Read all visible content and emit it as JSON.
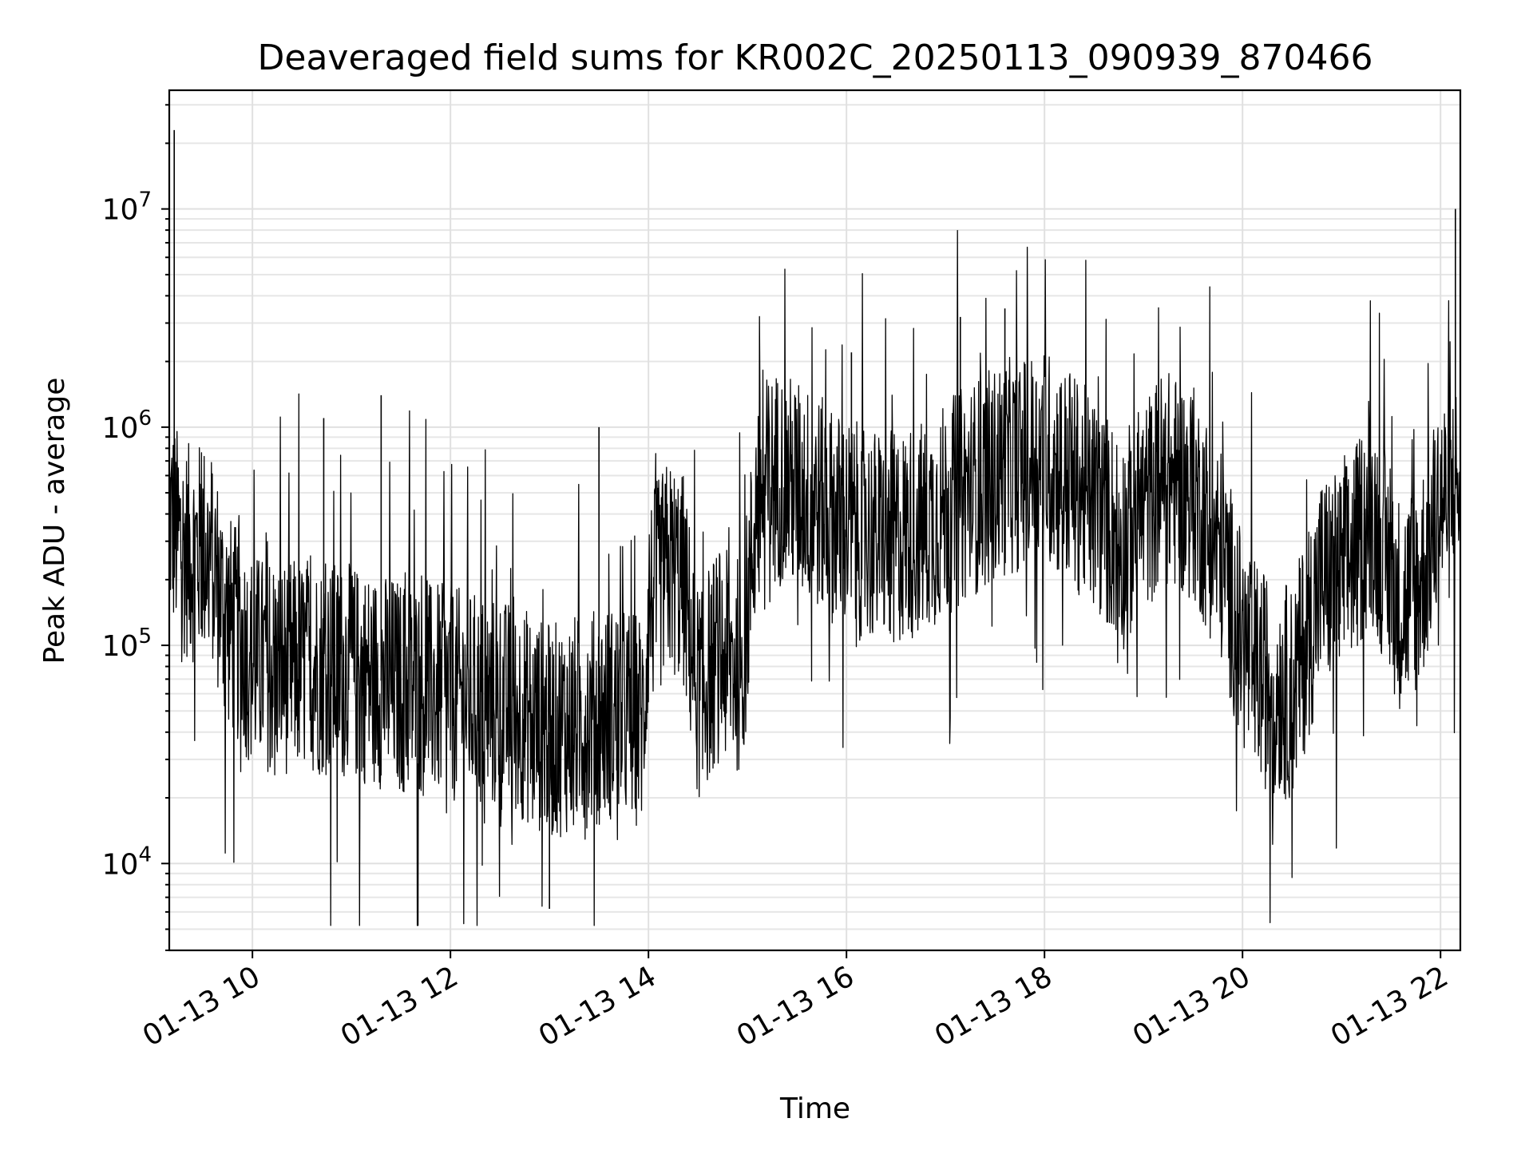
{
  "chart_data": {
    "type": "line",
    "title": "Deaveraged field sums for KR002C_20250113_090939_870466",
    "xlabel": "Time",
    "ylabel": "Peak ADU - average",
    "x_axis": {
      "kind": "time",
      "unit": "hour of 01-13",
      "range": [
        9.16,
        22.2
      ],
      "ticks": [
        10,
        12,
        14,
        16,
        18,
        20,
        22
      ],
      "tick_labels": [
        "01-13 10",
        "01-13 12",
        "01-13 14",
        "01-13 16",
        "01-13 18",
        "01-13 20",
        "01-13 22"
      ],
      "tick_label_rotation_deg": 30
    },
    "y_axis": {
      "scale": "log",
      "range": [
        4000,
        35000000
      ],
      "ticks": [
        10000,
        100000,
        1000000,
        10000000
      ],
      "tick_labels": [
        {
          "base": "10",
          "exp": "4"
        },
        {
          "base": "10",
          "exp": "5"
        },
        {
          "base": "10",
          "exp": "6"
        },
        {
          "base": "10",
          "exp": "7"
        }
      ]
    },
    "grid": true,
    "legend": "none",
    "line_color": "#000000",
    "series": [
      {
        "x": [
          9.16,
          9.2,
          9.3,
          9.4,
          9.5,
          9.6,
          9.7,
          9.8,
          10.0,
          10.3,
          10.6,
          11.0,
          11.5,
          12.0,
          12.3,
          12.7,
          13.0,
          13.3,
          13.7,
          13.95,
          14.0,
          14.2,
          14.35,
          14.5,
          14.7,
          14.95,
          15.1,
          15.3,
          15.6,
          16.0,
          16.4,
          16.8,
          17.2,
          17.6,
          18.0,
          18.4,
          18.8,
          19.2,
          19.5,
          19.8,
          20.0,
          20.2,
          20.5,
          20.8,
          21.0,
          21.3,
          21.6,
          21.8,
          22.0,
          22.2
        ],
        "y": [
          400000,
          350000,
          280000,
          260000,
          280000,
          250000,
          150000,
          120000,
          85000,
          80000,
          80000,
          75000,
          65000,
          60000,
          55000,
          50000,
          40000,
          45000,
          50000,
          45000,
          150000,
          230000,
          200000,
          60000,
          90000,
          80000,
          500000,
          600000,
          500000,
          350000,
          300000,
          350000,
          500000,
          650000,
          750000,
          500000,
          300000,
          600000,
          500000,
          250000,
          100000,
          70000,
          60000,
          200000,
          200000,
          400000,
          150000,
          200000,
          450000,
          550000
        ],
        "spikes": [
          {
            "x": 9.21,
            "y": 23000000
          },
          {
            "x": 22.15,
            "y": 10000000
          },
          {
            "x": 11.3,
            "y": 1400000
          },
          {
            "x": 10.72,
            "y": 1100000
          },
          {
            "x": 13.5,
            "y": 1000000
          },
          {
            "x": 17.6,
            "y": 3500000
          },
          {
            "x": 17.15,
            "y": 3200000
          },
          {
            "x": 16.05,
            "y": 2200000
          },
          {
            "x": 13.0,
            "y": 6200
          }
        ]
      }
    ]
  }
}
